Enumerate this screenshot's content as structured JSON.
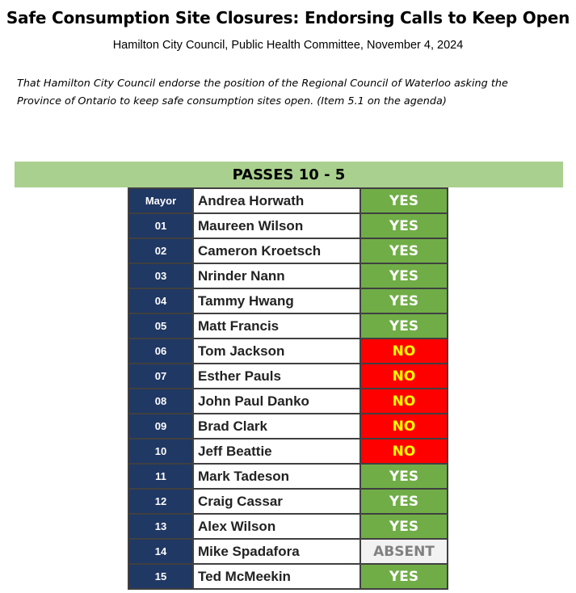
{
  "title": "Safe Consumption Site Closures: Endorsing Calls to Keep Open",
  "subtitle": "Hamilton City Council, Public Health Committee, November 4, 2024",
  "motion": "That Hamilton City Council endorse the position of the Regional Council of Waterloo asking the Province of Ontario to keep safe consumption sites open. (Item 5.1 on the agenda)",
  "result": "PASSES 10 - 5",
  "colors": {
    "result_bar": "#a9d08e",
    "ward_cell": "#203864",
    "yes": "#70ad47",
    "no": "#ff0000",
    "no_text": "#ffff00",
    "absent": "#f2f2f2"
  },
  "votes": [
    {
      "ward": "Mayor",
      "name": "Andrea Horwath",
      "vote": "YES"
    },
    {
      "ward": "01",
      "name": "Maureen Wilson",
      "vote": "YES"
    },
    {
      "ward": "02",
      "name": "Cameron Kroetsch",
      "vote": "YES"
    },
    {
      "ward": "03",
      "name": "Nrinder Nann",
      "vote": "YES"
    },
    {
      "ward": "04",
      "name": "Tammy Hwang",
      "vote": "YES"
    },
    {
      "ward": "05",
      "name": "Matt Francis",
      "vote": "YES"
    },
    {
      "ward": "06",
      "name": "Tom Jackson",
      "vote": "NO"
    },
    {
      "ward": "07",
      "name": "Esther Pauls",
      "vote": "NO"
    },
    {
      "ward": "08",
      "name": "John Paul Danko",
      "vote": "NO"
    },
    {
      "ward": "09",
      "name": "Brad Clark",
      "vote": "NO"
    },
    {
      "ward": "10",
      "name": "Jeff Beattie",
      "vote": "NO"
    },
    {
      "ward": "11",
      "name": "Mark Tadeson",
      "vote": "YES"
    },
    {
      "ward": "12",
      "name": "Craig Cassar",
      "vote": "YES"
    },
    {
      "ward": "13",
      "name": "Alex Wilson",
      "vote": "YES"
    },
    {
      "ward": "14",
      "name": "Mike Spadafora",
      "vote": "ABSENT"
    },
    {
      "ward": "15",
      "name": "Ted McMeekin",
      "vote": "YES"
    }
  ]
}
